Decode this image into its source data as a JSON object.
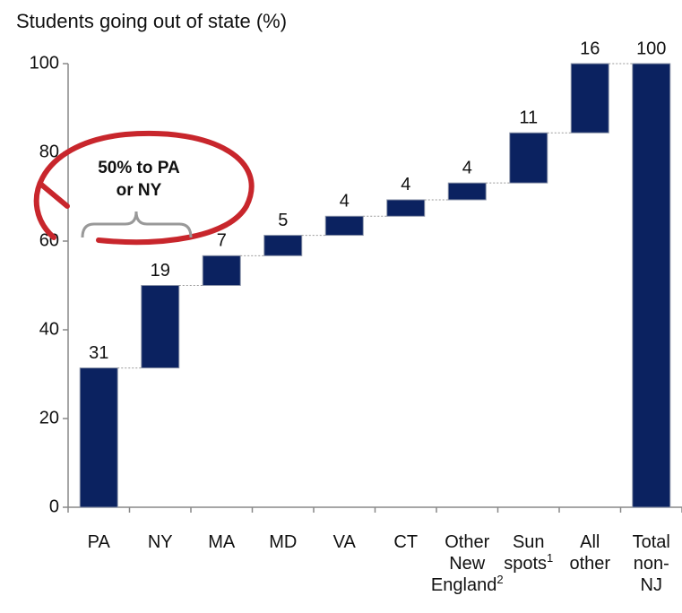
{
  "chart_data": {
    "type": "waterfall",
    "title": "Students going out of state (%)",
    "categories": [
      "PA",
      "NY",
      "MA",
      "MD",
      "VA",
      "CT",
      "Other New England²",
      "Sun spots¹",
      "All other",
      "Total non-NJ"
    ],
    "values": [
      31.4,
      18.6,
      6.7,
      4.6,
      4.3,
      3.7,
      3.8,
      11.3,
      15.6,
      100
    ],
    "value_labels": [
      "31",
      "19",
      "7",
      "5",
      "4",
      "4",
      "4",
      "11",
      "16",
      "100"
    ],
    "color": "#0b2260",
    "total_bar": true,
    "ylim": [
      0,
      100
    ],
    "yticks": [
      0,
      20,
      40,
      60,
      80,
      100
    ],
    "annotation": "50% to PA or NY"
  }
}
